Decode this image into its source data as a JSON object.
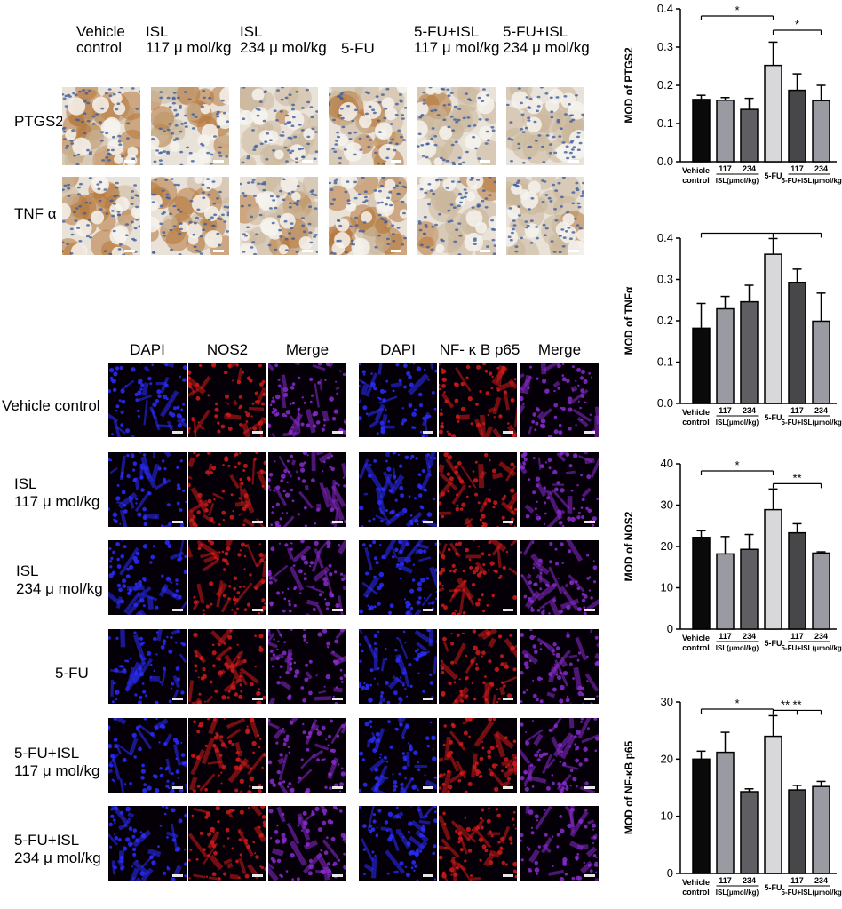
{
  "ihc": {
    "columns": [
      "Vehicle\ncontrol",
      "ISL\n117 μ mol/kg",
      "ISL\n234 μ mol/kg",
      "5-FU",
      "5-FU+ISL\n117 μ mol/kg",
      "5-FU+ISL\n234 μ mol/kg"
    ],
    "rows": [
      "PTGS2",
      "TNF α"
    ]
  },
  "if": {
    "left_headers": [
      "DAPI",
      "NOS2",
      "Merge"
    ],
    "right_headers": [
      "DAPI",
      "NF- κ B p65",
      "Merge"
    ],
    "rows": [
      "Vehicle control",
      "ISL\n117 μ mol/kg",
      "ISL\n234 μ mol/kg",
      "5-FU",
      "5-FU+ISL\n117 μ mol/kg",
      "5-FU+ISL\n234 μ mol/kg"
    ]
  },
  "chart_axis": {
    "tick_labels": [
      "Vehicle",
      "control",
      "117",
      "234",
      "ISL(μmol/kg)",
      "5-FU",
      "117",
      "234",
      "5-FU+ISL(μmol/kg)"
    ]
  },
  "chart_data": [
    {
      "type": "bar",
      "ylabel": "MOD of PTGS2",
      "ylim": [
        0,
        0.4
      ],
      "yticks": [
        "0.0",
        "0.1",
        "0.2",
        "0.3",
        "0.4"
      ],
      "categories": [
        "Vehicle control",
        "ISL 117",
        "ISL 234",
        "5-FU",
        "5-FU+ISL 117",
        "5-FU+ISL 234"
      ],
      "values": [
        0.163,
        0.161,
        0.137,
        0.252,
        0.187,
        0.16
      ],
      "errors": [
        0.011,
        0.007,
        0.029,
        0.061,
        0.043,
        0.04
      ],
      "significance": [
        {
          "from": 0,
          "to": 3,
          "label": "*"
        },
        {
          "from": 3,
          "to": 5,
          "label": "*"
        }
      ]
    },
    {
      "type": "bar",
      "ylabel": "MOD of TNFα",
      "ylim": [
        0,
        0.4
      ],
      "yticks": [
        "0.0",
        "0.1",
        "0.2",
        "0.3",
        "0.4"
      ],
      "categories": [
        "Vehicle control",
        "ISL 117",
        "ISL 234",
        "5-FU",
        "5-FU+ISL 117",
        "5-FU+ISL 234"
      ],
      "values": [
        0.182,
        0.229,
        0.246,
        0.361,
        0.293,
        0.199
      ],
      "errors": [
        0.06,
        0.03,
        0.04,
        0.038,
        0.032,
        0.068
      ],
      "significance": [
        {
          "from": 0,
          "to": 3,
          "label": "**"
        },
        {
          "from": 3,
          "to": 5,
          "label": "**"
        }
      ]
    },
    {
      "type": "bar",
      "ylabel": "MOD of NOS2",
      "ylim": [
        0,
        40
      ],
      "yticks": [
        "0",
        "10",
        "20",
        "30",
        "40"
      ],
      "categories": [
        "Vehicle control",
        "ISL 117",
        "ISL 234",
        "5-FU",
        "5-FU+ISL 117",
        "5-FU+ISL 234"
      ],
      "values": [
        22.2,
        18.2,
        19.3,
        28.9,
        23.3,
        18.4
      ],
      "errors": [
        1.6,
        4.2,
        3.6,
        5.0,
        2.2,
        0.3
      ],
      "significance": [
        {
          "from": 0,
          "to": 3,
          "label": "*"
        },
        {
          "from": 3,
          "to": 5,
          "label": "**"
        }
      ]
    },
    {
      "type": "bar",
      "ylabel": "MOD of NF-κB p65",
      "ylim": [
        0,
        30
      ],
      "yticks": [
        "0",
        "10",
        "20",
        "30"
      ],
      "categories": [
        "Vehicle control",
        "ISL 117",
        "ISL 234",
        "5-FU",
        "5-FU+ISL 117",
        "5-FU+ISL 234"
      ],
      "values": [
        20.0,
        21.2,
        14.3,
        24.0,
        14.6,
        15.2
      ],
      "errors": [
        1.4,
        3.5,
        0.5,
        3.6,
        0.8,
        0.9
      ],
      "significance": [
        {
          "from": 0,
          "to": 3,
          "label": "*"
        },
        {
          "from": 3,
          "to": 4,
          "label": "**"
        },
        {
          "from": 3,
          "to": 5,
          "label": "**"
        }
      ]
    }
  ],
  "colors": {
    "bars": [
      "#0a0a0a",
      "#9a9aa2",
      "#5f5f63",
      "#d8d8da",
      "#474749",
      "#9a9aa2"
    ],
    "ihc_brown": "#b5773a",
    "ihc_blue": "#3f5fa0",
    "if_blue": "#2c2cff",
    "if_red": "#d21a1a",
    "if_merge": "#8a2ad0"
  }
}
